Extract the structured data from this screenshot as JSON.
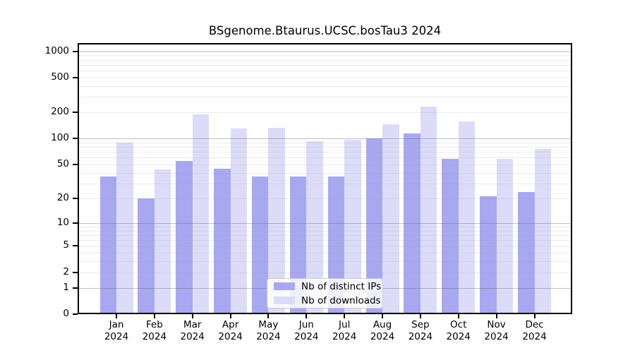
{
  "chart_data": {
    "type": "bar",
    "title": "BSgenome.Btaurus.UCSC.bosTau3 2024",
    "categories": [
      "Jan",
      "Feb",
      "Mar",
      "Apr",
      "May",
      "Jun",
      "Jul",
      "Aug",
      "Sep",
      "Oct",
      "Nov",
      "Dec"
    ],
    "x_year_label": "2024",
    "series": [
      {
        "name": "Nb of distinct IPs",
        "color": "#a8a8f0",
        "values": [
          36,
          20,
          55,
          45,
          36,
          36,
          36,
          100,
          115,
          58,
          21,
          24
        ]
      },
      {
        "name": "Nb of downloads",
        "color": "#dcdcf8",
        "values": [
          90,
          44,
          190,
          130,
          133,
          93,
          97,
          146,
          235,
          157,
          58,
          76
        ]
      }
    ],
    "y_axis": {
      "scale": "log1p",
      "ticks": [
        0,
        1,
        2,
        5,
        10,
        20,
        50,
        100,
        200,
        500,
        1000
      ],
      "major_gridlines": [
        1,
        10,
        100,
        1000
      ],
      "minor_gridlines": [
        2,
        3,
        4,
        5,
        6,
        7,
        8,
        9,
        20,
        30,
        40,
        50,
        60,
        70,
        80,
        90,
        200,
        300,
        400,
        500,
        600,
        700,
        800,
        900
      ],
      "range": [
        0,
        1000
      ]
    },
    "legend_position": "inside-bottom-center",
    "grid": true
  }
}
